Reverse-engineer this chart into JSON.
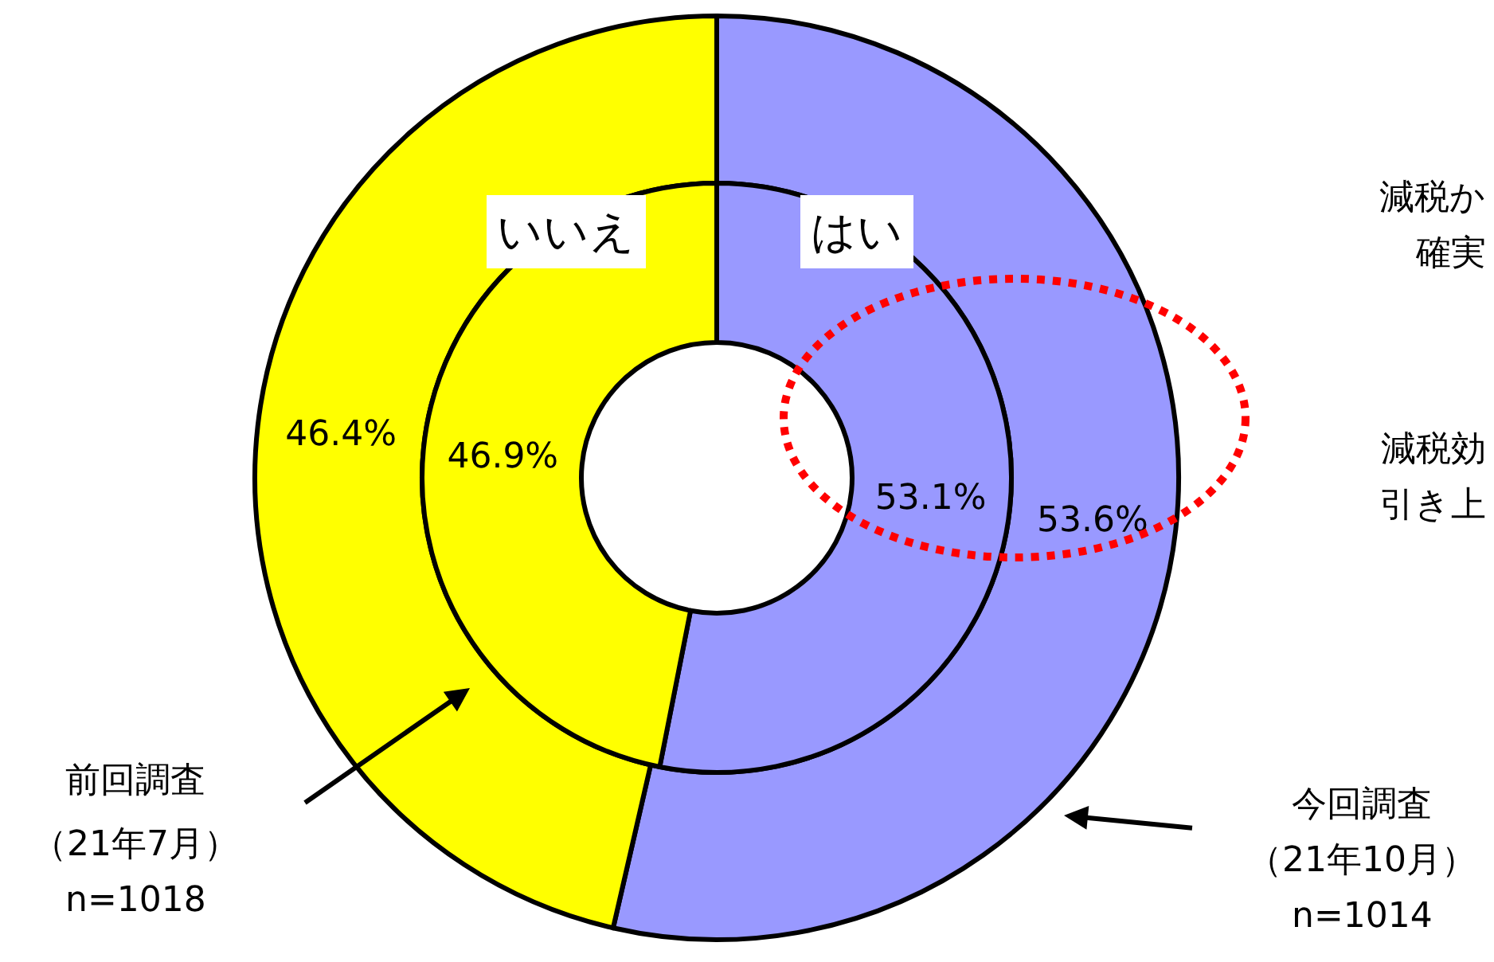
{
  "chart_data": {
    "type": "donut",
    "categories": [
      "はい",
      "いいえ"
    ],
    "series": [
      {
        "color": null,
        "colors": [
          "#9999ff",
          "#ffff00"
        ],
        "values": [
          53.6,
          46.4
        ],
        "value_labels": [
          "53.6%",
          "46.4%"
        ]
      },
      {
        "colors": [
          "#9999ff",
          "#ffff00"
        ],
        "values": [
          53.1,
          46.9
        ],
        "value_labels": [
          "53.1%",
          "46.9%"
        ]
      }
    ],
    "annotations": [
      "前回調査",
      "（21年7月）",
      "n=1018",
      "今回調査",
      "（21年10月）",
      "n=1014",
      "減税か",
      "確実",
      "減税効",
      "引き上"
    ],
    "legend": false
  }
}
